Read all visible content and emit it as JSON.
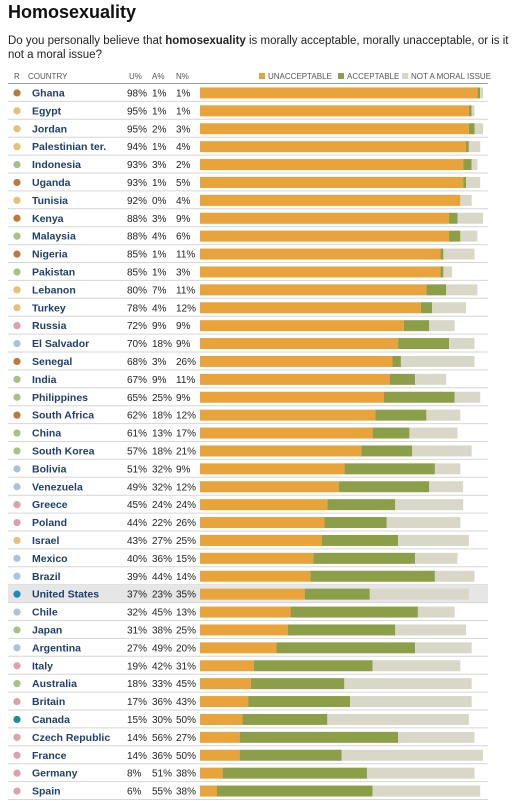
{
  "title": "Homosexuality",
  "question": {
    "before": "Do you personally believe that ",
    "bold": "homosexuality",
    "after": " is morally acceptable, morally unacceptable, or is it not a moral issue?"
  },
  "headers": {
    "region": "R",
    "country": "COUNTRY",
    "u": "U%",
    "a": "A%",
    "n": "N%"
  },
  "colors": {
    "unacceptable": "#e8a33a",
    "acceptable": "#8c9f48",
    "not_moral": "#d9d8c8",
    "row_border": "#d6d6d6",
    "highlight_row": "#e6e6e6",
    "country_text": "#1f3f6e"
  },
  "chart_data": {
    "type": "bar",
    "stacked": true,
    "orientation": "horizontal",
    "value_format": "percent",
    "legend": [
      "UNACCEPTABLE",
      "ACCEPTABLE",
      "NOT A MORAL ISSUE"
    ],
    "legend_position": "top-right",
    "rows": [
      {
        "country": "Ghana",
        "region_color": "#b87a3e",
        "u": 98,
        "a": 1,
        "n": 1
      },
      {
        "country": "Egypt",
        "region_color": "#e6c07a",
        "u": 95,
        "a": 1,
        "n": 1
      },
      {
        "country": "Jordan",
        "region_color": "#e6c07a",
        "u": 95,
        "a": 2,
        "n": 3
      },
      {
        "country": "Palestinian ter.",
        "region_color": "#e6c07a",
        "u": 94,
        "a": 1,
        "n": 4
      },
      {
        "country": "Indonesia",
        "region_color": "#a8c186",
        "u": 93,
        "a": 3,
        "n": 2
      },
      {
        "country": "Uganda",
        "region_color": "#b87a3e",
        "u": 93,
        "a": 1,
        "n": 5
      },
      {
        "country": "Tunisia",
        "region_color": "#e6c07a",
        "u": 92,
        "a": 0,
        "n": 4
      },
      {
        "country": "Kenya",
        "region_color": "#b87a3e",
        "u": 88,
        "a": 3,
        "n": 9
      },
      {
        "country": "Malaysia",
        "region_color": "#a8c186",
        "u": 88,
        "a": 4,
        "n": 6
      },
      {
        "country": "Nigeria",
        "region_color": "#b87a3e",
        "u": 85,
        "a": 1,
        "n": 11
      },
      {
        "country": "Pakistan",
        "region_color": "#a8c186",
        "u": 85,
        "a": 1,
        "n": 3
      },
      {
        "country": "Lebanon",
        "region_color": "#e6c07a",
        "u": 80,
        "a": 7,
        "n": 11
      },
      {
        "country": "Turkey",
        "region_color": "#e6c07a",
        "u": 78,
        "a": 4,
        "n": 12
      },
      {
        "country": "Russia",
        "region_color": "#d9a3a8",
        "u": 72,
        "a": 9,
        "n": 9
      },
      {
        "country": "El Salvador",
        "region_color": "#a9c4d9",
        "u": 70,
        "a": 18,
        "n": 9
      },
      {
        "country": "Senegal",
        "region_color": "#b87a3e",
        "u": 68,
        "a": 3,
        "n": 26
      },
      {
        "country": "India",
        "region_color": "#a8c186",
        "u": 67,
        "a": 9,
        "n": 11
      },
      {
        "country": "Philippines",
        "region_color": "#a8c186",
        "u": 65,
        "a": 25,
        "n": 9
      },
      {
        "country": "South Africa",
        "region_color": "#b87a3e",
        "u": 62,
        "a": 18,
        "n": 12
      },
      {
        "country": "China",
        "region_color": "#a8c186",
        "u": 61,
        "a": 13,
        "n": 17
      },
      {
        "country": "South Korea",
        "region_color": "#a8c186",
        "u": 57,
        "a": 18,
        "n": 21
      },
      {
        "country": "Bolivia",
        "region_color": "#a9c4d9",
        "u": 51,
        "a": 32,
        "n": 9
      },
      {
        "country": "Venezuela",
        "region_color": "#a9c4d9",
        "u": 49,
        "a": 32,
        "n": 12
      },
      {
        "country": "Greece",
        "region_color": "#d9a3a8",
        "u": 45,
        "a": 24,
        "n": 24
      },
      {
        "country": "Poland",
        "region_color": "#d9a3a8",
        "u": 44,
        "a": 22,
        "n": 26
      },
      {
        "country": "Israel",
        "region_color": "#e6c07a",
        "u": 43,
        "a": 27,
        "n": 25
      },
      {
        "country": "Mexico",
        "region_color": "#a9c4d9",
        "u": 40,
        "a": 36,
        "n": 15
      },
      {
        "country": "Brazil",
        "region_color": "#a9c4d9",
        "u": 39,
        "a": 44,
        "n": 14
      },
      {
        "country": "United States",
        "region_color": "#1e8ab8",
        "u": 37,
        "a": 23,
        "n": 35,
        "highlight": true
      },
      {
        "country": "Chile",
        "region_color": "#a9c4d9",
        "u": 32,
        "a": 45,
        "n": 13
      },
      {
        "country": "Japan",
        "region_color": "#a8c186",
        "u": 31,
        "a": 38,
        "n": 25
      },
      {
        "country": "Argentina",
        "region_color": "#a9c4d9",
        "u": 27,
        "a": 49,
        "n": 20
      },
      {
        "country": "Italy",
        "region_color": "#d9a3a8",
        "u": 19,
        "a": 42,
        "n": 31
      },
      {
        "country": "Australia",
        "region_color": "#a8c186",
        "u": 18,
        "a": 33,
        "n": 45
      },
      {
        "country": "Britain",
        "region_color": "#d9a3a8",
        "u": 17,
        "a": 36,
        "n": 43
      },
      {
        "country": "Canada",
        "region_color": "#1a8c9c",
        "u": 15,
        "a": 30,
        "n": 50
      },
      {
        "country": "Czech Republic",
        "region_color": "#d9a3a8",
        "u": 14,
        "a": 56,
        "n": 27
      },
      {
        "country": "France",
        "region_color": "#d9a3a8",
        "u": 14,
        "a": 36,
        "n": 50
      },
      {
        "country": "Germany",
        "region_color": "#d9a3a8",
        "u": 8,
        "a": 51,
        "n": 38
      },
      {
        "country": "Spain",
        "region_color": "#d9a3a8",
        "u": 6,
        "a": 55,
        "n": 38
      }
    ]
  }
}
